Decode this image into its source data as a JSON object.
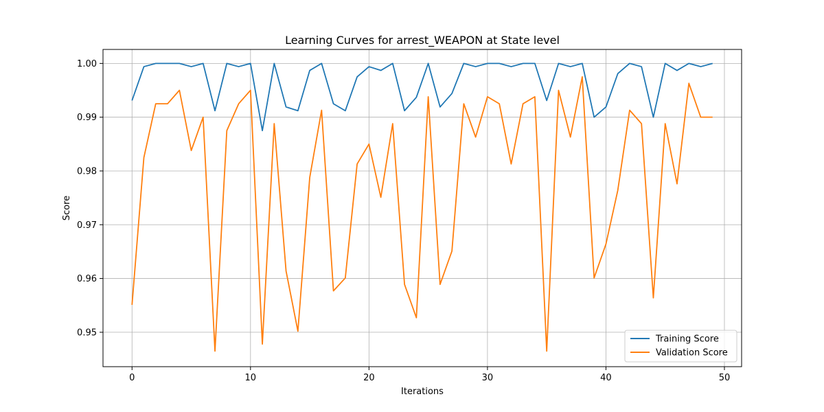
{
  "chart_data": {
    "type": "line",
    "title": "Learning Curves for arrest_WEAPON at State level",
    "xlabel": "Iterations",
    "ylabel": "Score",
    "xlim": [
      -2.45,
      51.45
    ],
    "ylim": [
      0.9436,
      1.0026
    ],
    "xticks": [
      0,
      10,
      20,
      30,
      40,
      50
    ],
    "yticks": [
      0.95,
      0.96,
      0.97,
      0.98,
      0.99,
      1.0
    ],
    "ytick_labels": [
      "0.95",
      "0.96",
      "0.97",
      "0.98",
      "0.99",
      "1.00"
    ],
    "grid": true,
    "legend_position": "lower-right",
    "x": [
      0,
      1,
      2,
      3,
      4,
      5,
      6,
      7,
      8,
      9,
      10,
      11,
      12,
      13,
      14,
      15,
      16,
      17,
      18,
      19,
      20,
      21,
      22,
      23,
      24,
      25,
      26,
      27,
      28,
      29,
      30,
      31,
      32,
      33,
      34,
      35,
      36,
      37,
      38,
      39,
      40,
      41,
      42,
      43,
      44,
      45,
      46,
      47,
      48,
      49
    ],
    "series": [
      {
        "name": "Training Score",
        "color": "#1f77b4",
        "values": [
          0.9931,
          0.9994,
          1.0,
          1.0,
          1.0,
          0.9994,
          1.0,
          0.9912,
          1.0,
          0.9994,
          1.0,
          0.9875,
          1.0,
          0.9919,
          0.9912,
          0.9987,
          1.0,
          0.9925,
          0.9912,
          0.9975,
          0.9994,
          0.9987,
          1.0,
          0.9912,
          0.9937,
          1.0,
          0.9919,
          0.9944,
          1.0,
          0.9994,
          1.0,
          1.0,
          0.9994,
          1.0,
          1.0,
          0.9931,
          1.0,
          0.9994,
          1.0,
          0.99,
          0.9919,
          0.9981,
          1.0,
          0.9994,
          0.99,
          1.0,
          0.9987,
          1.0,
          0.9994,
          1.0
        ]
      },
      {
        "name": "Validation Score",
        "color": "#ff7f0e",
        "values": [
          0.9551,
          0.9825,
          0.9925,
          0.9925,
          0.995,
          0.9838,
          0.99,
          0.9465,
          0.9875,
          0.9925,
          0.995,
          0.9478,
          0.9888,
          0.9614,
          0.9502,
          0.9788,
          0.9913,
          0.9577,
          0.9601,
          0.9813,
          0.985,
          0.9751,
          0.9888,
          0.9589,
          0.9527,
          0.9938,
          0.9589,
          0.9651,
          0.9925,
          0.9863,
          0.9938,
          0.9925,
          0.9813,
          0.9925,
          0.9938,
          0.9465,
          0.995,
          0.9863,
          0.9975,
          0.9601,
          0.9664,
          0.9764,
          0.9913,
          0.9888,
          0.9564,
          0.9888,
          0.9776,
          0.9963,
          0.99,
          0.99
        ]
      }
    ]
  }
}
